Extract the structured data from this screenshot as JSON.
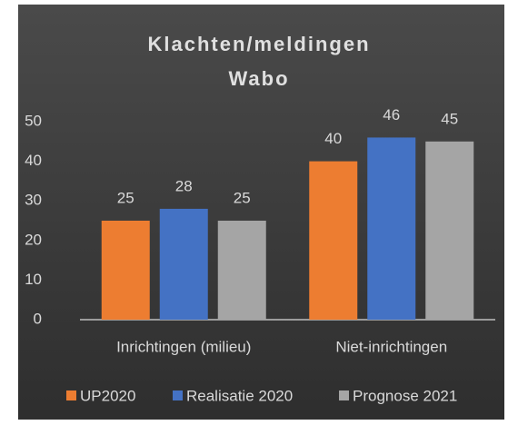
{
  "chart_data": {
    "type": "bar",
    "title": "Klachten/meldingen Wabo",
    "categories": [
      "Inrichtingen (milieu)",
      "Niet-inrichtingen"
    ],
    "series": [
      {
        "name": "UP2020",
        "color": "#ed7d31",
        "values": [
          25,
          40
        ]
      },
      {
        "name": "Realisatie 2020",
        "color": "#4472c4",
        "values": [
          28,
          46
        ]
      },
      {
        "name": "Prognose 2021",
        "color": "#a5a5a5",
        "values": [
          25,
          45
        ]
      }
    ],
    "ylim": [
      0,
      50
    ],
    "yticks": [
      0,
      10,
      20,
      30,
      40,
      50
    ],
    "grid": false,
    "legend": "bottom"
  }
}
